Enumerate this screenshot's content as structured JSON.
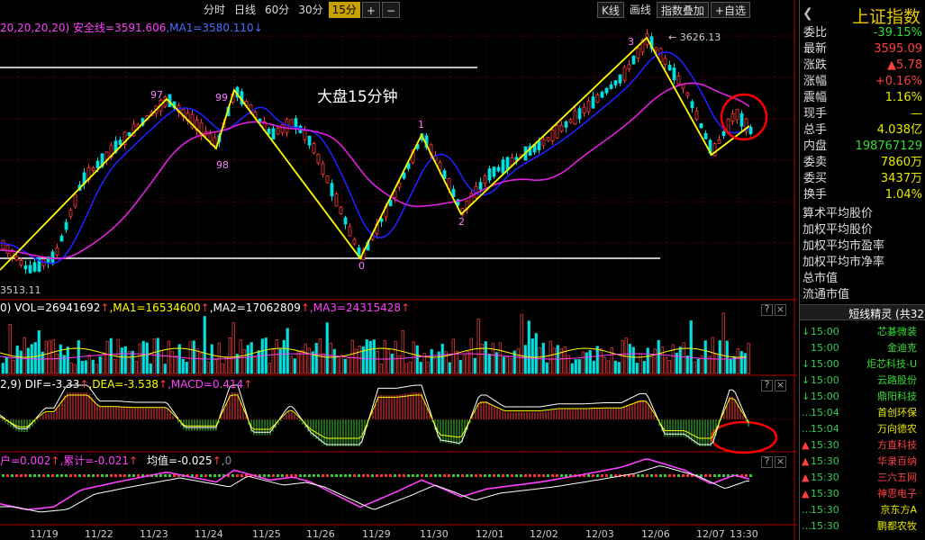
{
  "toolbar": {
    "periods": [
      "分时",
      "日线",
      "60分",
      "30分",
      "15分"
    ],
    "active_period": "15分",
    "plus": "+",
    "minus": "−",
    "kline": "K线",
    "drawline": "画线",
    "overlay": "指数叠加",
    "watchlist": "+自选"
  },
  "main_info": {
    "params": "20,20,20,20)",
    "safety_line": "安全线=3591.606",
    "ma1": ",MA1=3580.110",
    "arrow": "↓"
  },
  "annotations": {
    "high_label": "3626.13",
    "low_label": "3513.11",
    "title": "大盘15分钟",
    "wave_labels": [
      "97",
      "99",
      "98",
      "1",
      "0",
      "2",
      "3"
    ]
  },
  "vol_info": {
    "lead": "0)",
    "vol": "VOL=26941692",
    "ma1": ",MA1=16534600",
    "ma2": ",MA2=17062809",
    "ma3": ",MA3=24315428",
    "arrow": "↑"
  },
  "macd_info": {
    "lead": "2,9)",
    "dif": "DIF=-3.33",
    "dea": ",DEA=-3.538",
    "macd": ",MACD=0.414",
    "arrow": "↑"
  },
  "ind3_info": {
    "lead": "户=0.002",
    "cum": ",累计=-0.021",
    "avg": "均值=-0.025",
    "tail": ",0",
    "arrow": "↑"
  },
  "x_axis": [
    "11/19",
    "11/22",
    "11/23",
    "11/24",
    "11/25",
    "11/26",
    "11/29",
    "11/30",
    "12/01",
    "12/02",
    "12/03",
    "12/06",
    "12/07",
    "13:30"
  ],
  "quote": {
    "title": "上证指数",
    "rows": [
      {
        "label": "委比",
        "value": "-39.15%",
        "color": "#33dd33"
      },
      {
        "label": "最新",
        "value": "3595.09",
        "color": "#ff4040"
      },
      {
        "label": "涨跌",
        "value": "▲5.78",
        "color": "#ff4040"
      },
      {
        "label": "涨幅",
        "value": "+0.16%",
        "color": "#ff4040"
      },
      {
        "label": "震幅",
        "value": "1.16%",
        "color": "#e8e800"
      },
      {
        "label": "现手",
        "value": "—",
        "color": "#e8e800"
      },
      {
        "label": "总手",
        "value": "4.038亿",
        "color": "#e8e800"
      },
      {
        "label": "内盘",
        "value": "198767129",
        "color": "#33dd33"
      },
      {
        "label": "委卖",
        "value": "7860万",
        "color": "#e8e800"
      },
      {
        "label": "委买",
        "value": "3437万",
        "color": "#e8e800"
      },
      {
        "label": "换手",
        "value": "1.04%",
        "color": "#e8e800"
      }
    ],
    "index_items": [
      "算术平均股价",
      "加权平均股价",
      "加权平均市盈率",
      "加权平均市净率",
      "总市值",
      "流通市值"
    ]
  },
  "alerts": {
    "header": "短线精灵 (共32",
    "items": [
      {
        "mark": "↓",
        "time": "15:00",
        "name": "芯碁微装",
        "color": "#33dd33"
      },
      {
        "mark": "",
        "time": "15:00",
        "name": "金迪克",
        "color": "#33dd33"
      },
      {
        "mark": "↓",
        "time": "15:00",
        "name": "炬芯科技-U",
        "color": "#33dd33"
      },
      {
        "mark": "↓",
        "time": "15:00",
        "name": "云路股份",
        "color": "#33dd33"
      },
      {
        "mark": "↓",
        "time": "15:00",
        "name": "鼎阳科技",
        "color": "#33dd33"
      },
      {
        "mark": "…",
        "time": "15:04",
        "name": "首创环保",
        "color": "#e8e800"
      },
      {
        "mark": "…",
        "time": "15:04",
        "name": "万向德农",
        "color": "#e8e800"
      },
      {
        "mark": "▲",
        "time": "15:30",
        "name": "方直科技",
        "color": "#ff4040"
      },
      {
        "mark": "▲",
        "time": "15:30",
        "name": "华录百纳",
        "color": "#ff4040"
      },
      {
        "mark": "▲",
        "time": "15:30",
        "name": "三六五网",
        "color": "#ff4040"
      },
      {
        "mark": "▲",
        "time": "15:30",
        "name": "神思电子",
        "color": "#ff4040"
      },
      {
        "mark": "…",
        "time": "15:30",
        "name": "京东方A",
        "color": "#e8e800"
      },
      {
        "mark": "…",
        "time": "15:30",
        "name": "鹏都农牧",
        "color": "#e8e800"
      }
    ]
  },
  "colors": {
    "up": "#ff3b3b",
    "down": "#00e0e0",
    "ma_blue": "#2020ff",
    "ma_mag": "#e020e0",
    "wave": "#ffff00",
    "grid": "#7a0000",
    "accent": "#e8c800"
  }
}
